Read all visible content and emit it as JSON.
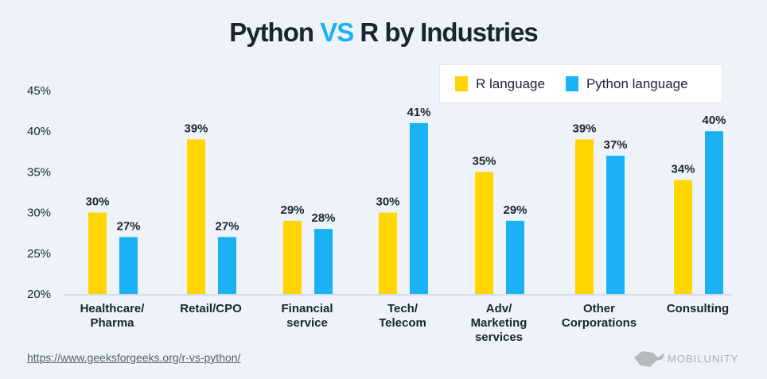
{
  "title": {
    "part1": "Python",
    "vs": "VS",
    "part2": "R  by Industries"
  },
  "colors": {
    "r": "#ffd600",
    "python": "#1ab2f5",
    "vs": "#1ab2f5"
  },
  "chart_data": {
    "type": "bar",
    "title": "Python VS R  by Industries",
    "categories": [
      [
        "Healthcare/",
        "Pharma"
      ],
      [
        "Retail/CPO"
      ],
      [
        "Financial",
        "service"
      ],
      [
        "Tech/",
        "Telecom"
      ],
      [
        "Adv/",
        "Marketing",
        "services"
      ],
      [
        "Other",
        "Corporations"
      ],
      [
        "Consulting"
      ]
    ],
    "series": [
      {
        "name": "R language",
        "values": [
          30,
          39,
          29,
          30,
          35,
          39,
          34
        ]
      },
      {
        "name": "Python language",
        "values": [
          27,
          27,
          28,
          41,
          29,
          37,
          40
        ]
      }
    ],
    "ylim": [
      20,
      45
    ],
    "yticks": [
      "20%",
      "25%",
      "30%",
      "35%",
      "40%",
      "45%"
    ],
    "legend": "top-right",
    "grid": false
  },
  "source": "https://www.geeksforgeeks.org/r-vs-python/",
  "logo": "MOBILUNITY"
}
